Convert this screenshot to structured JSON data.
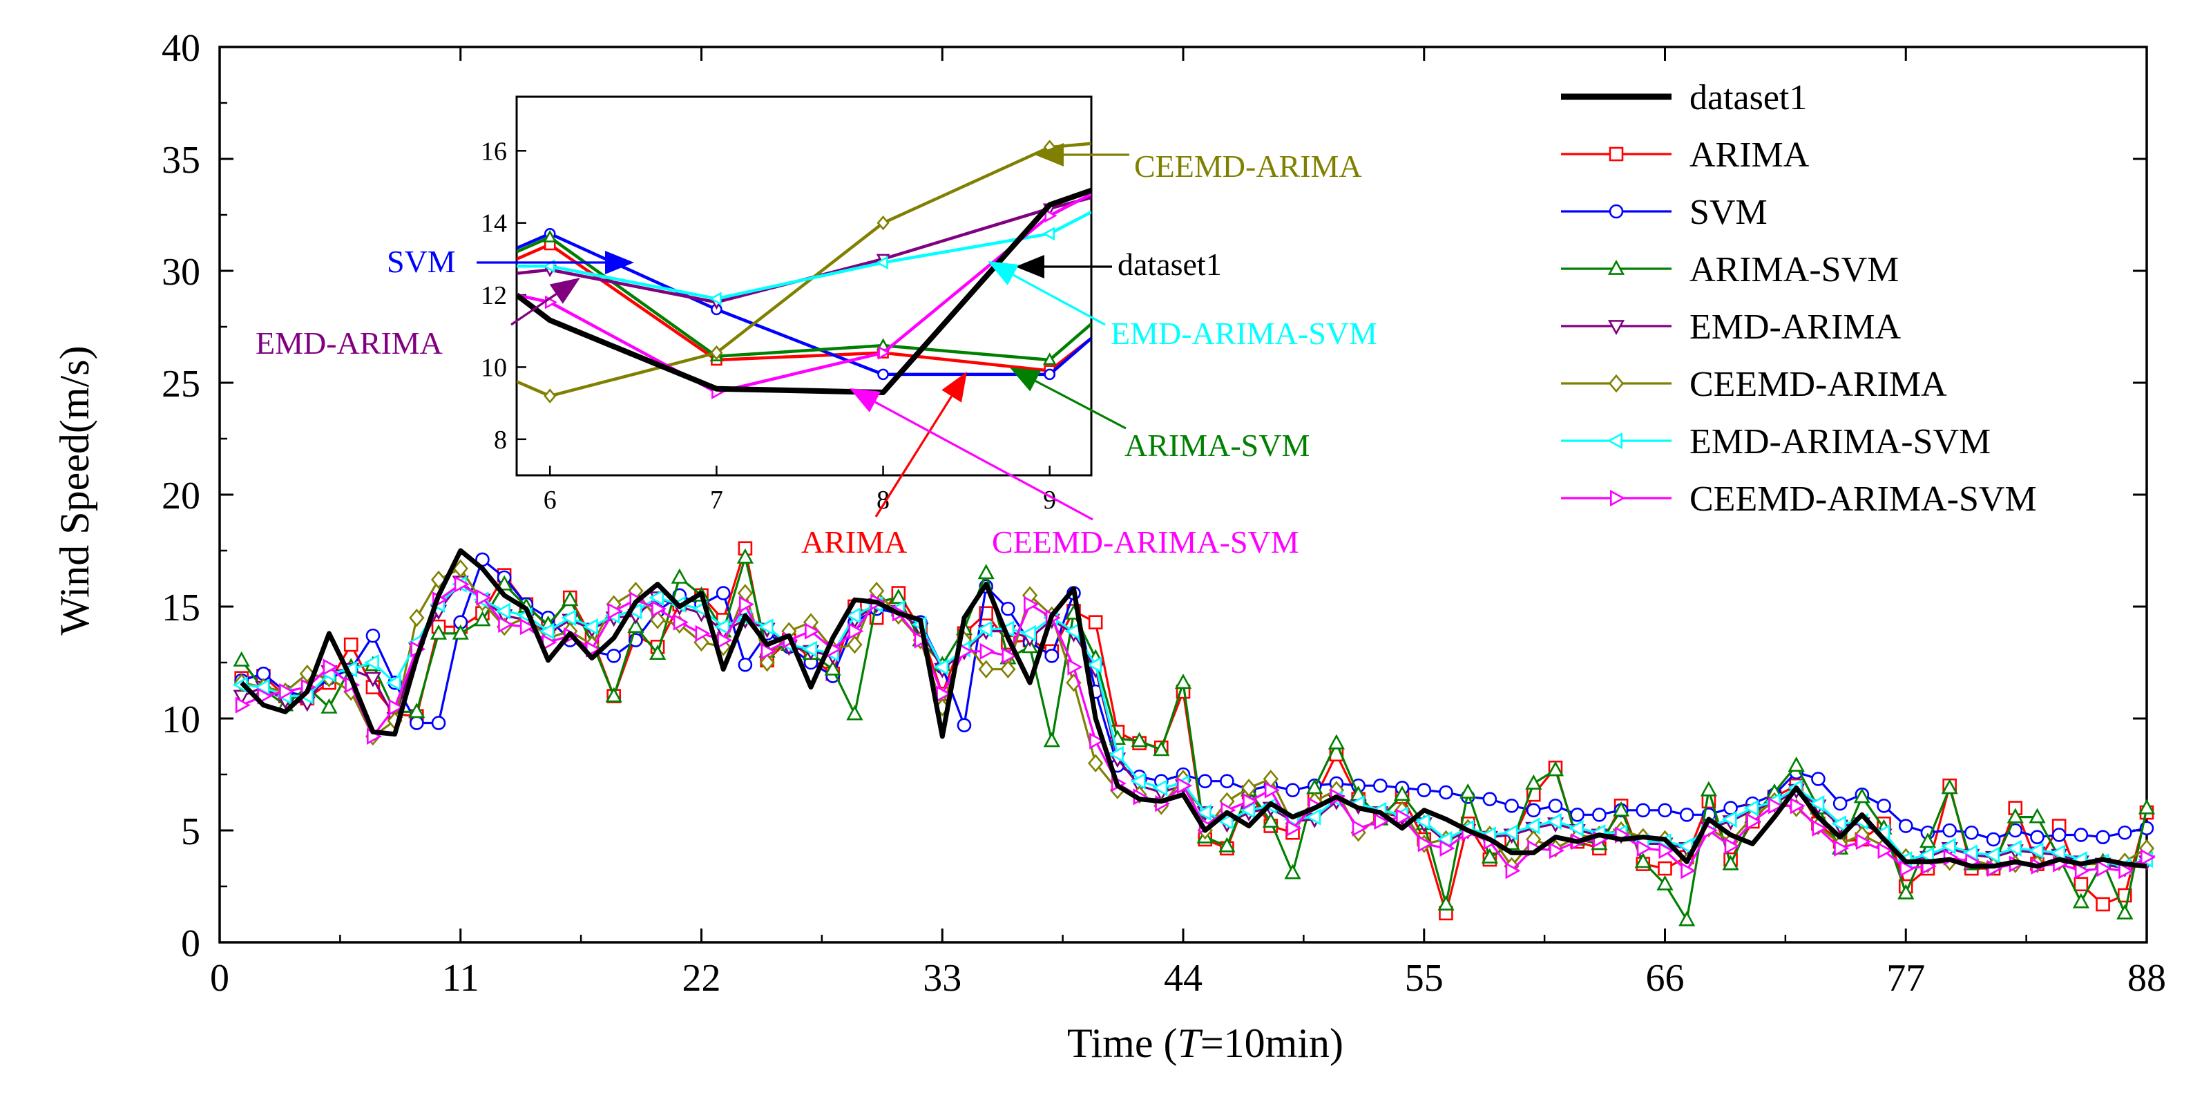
{
  "chart_data": [
    {
      "name": "main",
      "type": "line",
      "title": "",
      "xlabel": "Time (T=10min)",
      "xlabel_parts": [
        "Time (",
        "T",
        "=10min)"
      ],
      "ylabel": "Wind Speed(m/s)",
      "xlim": [
        0,
        88
      ],
      "ylim": [
        0,
        40
      ],
      "xticks": [
        0,
        11,
        22,
        33,
        44,
        55,
        66,
        77,
        88
      ],
      "yticks": [
        0,
        5,
        10,
        15,
        20,
        25,
        30,
        35,
        40
      ],
      "grid": false,
      "legend": "top-right",
      "x": [
        1,
        2,
        3,
        4,
        5,
        6,
        7,
        8,
        9,
        10,
        11,
        12,
        13,
        14,
        15,
        16,
        17,
        18,
        19,
        20,
        21,
        22,
        23,
        24,
        25,
        26,
        27,
        28,
        29,
        30,
        31,
        32,
        33,
        34,
        35,
        36,
        37,
        38,
        39,
        40,
        41,
        42,
        43,
        44,
        45,
        46,
        47,
        48,
        49,
        50,
        51,
        52,
        53,
        54,
        55,
        56,
        57,
        58,
        59,
        60,
        61,
        62,
        63,
        64,
        65,
        66,
        67,
        68,
        69,
        70,
        71,
        72,
        73,
        74,
        75,
        76,
        77,
        78,
        79,
        80,
        81,
        82,
        83,
        84,
        85,
        86,
        87,
        88
      ],
      "series": [
        {
          "name": "dataset1",
          "color": "#000000",
          "marker": "none",
          "values": [
            11.6,
            10.6,
            10.3,
            11.2,
            13.8,
            11.8,
            9.4,
            9.3,
            12.7,
            15.5,
            17.5,
            16.7,
            15.5,
            14.9,
            12.6,
            13.8,
            12.7,
            13.6,
            15.2,
            16.0,
            15.0,
            15.6,
            12.2,
            14.6,
            13.3,
            13.7,
            11.4,
            13.6,
            15.3,
            15.2,
            14.7,
            14.4,
            9.2,
            14.5,
            16.0,
            13.6,
            11.6,
            14.6,
            15.8,
            10.0,
            7.0,
            6.4,
            6.3,
            6.6,
            5.0,
            5.8,
            5.2,
            6.2,
            5.6,
            6.0,
            6.5,
            6.0,
            5.8,
            5.1,
            5.9,
            5.5,
            5.0,
            4.6,
            4.0,
            4.0,
            4.7,
            4.5,
            4.8,
            4.6,
            4.7,
            4.6,
            3.6,
            5.5,
            4.8,
            4.4,
            5.6,
            6.9,
            5.6,
            4.7,
            5.7,
            4.6,
            3.6,
            3.6,
            3.7,
            3.4,
            3.4,
            3.6,
            3.4,
            3.7,
            3.5,
            3.7,
            3.5,
            3.4
          ]
        },
        {
          "name": "ARIMA",
          "color": "#ff0000",
          "marker": "square",
          "values": [
            11.8,
            11.9,
            11.0,
            10.9,
            11.6,
            13.3,
            11.4,
            10.2,
            10.1,
            14.1,
            14.1,
            14.7,
            16.4,
            15.1,
            14.1,
            15.4,
            13.6,
            11.0,
            13.7,
            13.2,
            15.1,
            15.5,
            14.4,
            17.6,
            12.6,
            13.5,
            12.7,
            12.0,
            15.0,
            14.5,
            15.6,
            14.0,
            11.1,
            13.8,
            14.7,
            13.4,
            13.5,
            13.0,
            14.8,
            14.3,
            9.4,
            8.9,
            8.7,
            11.2,
            4.6,
            4.2,
            6.7,
            5.2,
            4.9,
            6.4,
            8.4,
            6.4,
            5.6,
            6.5,
            4.6,
            1.3,
            5.3,
            3.7,
            4.5,
            6.6,
            7.8,
            4.5,
            4.2,
            6.1,
            3.5,
            3.3,
            3.8,
            6.3,
            3.7,
            5.4,
            6.5,
            7.0,
            5.3,
            4.5,
            4.6,
            5.3,
            2.5,
            3.3,
            7.0,
            3.3,
            3.3,
            6.0,
            3.5,
            5.2,
            2.6,
            1.7,
            2.1,
            5.8
          ]
        },
        {
          "name": "SVM",
          "color": "#0000ff",
          "marker": "circle",
          "values": [
            11.7,
            12.0,
            11.2,
            11.0,
            11.8,
            12.2,
            13.7,
            11.6,
            9.8,
            9.8,
            14.3,
            17.1,
            16.3,
            15.1,
            14.5,
            13.5,
            13.0,
            12.8,
            13.5,
            14.8,
            15.5,
            15.1,
            15.6,
            12.4,
            13.8,
            13.2,
            12.5,
            11.9,
            14.3,
            14.9,
            14.7,
            14.3,
            12.3,
            9.7,
            15.9,
            14.9,
            13.4,
            12.8,
            15.6,
            11.2,
            7.9,
            7.4,
            7.2,
            7.5,
            7.2,
            7.2,
            6.8,
            7.0,
            6.8,
            7.0,
            7.1,
            7.0,
            7.0,
            6.9,
            6.8,
            6.7,
            6.5,
            6.4,
            6.1,
            5.9,
            6.1,
            5.7,
            5.7,
            5.9,
            5.9,
            5.9,
            5.7,
            5.7,
            6.0,
            6.2,
            6.6,
            7.6,
            7.3,
            6.2,
            6.6,
            6.1,
            5.2,
            4.9,
            5.0,
            4.9,
            4.6,
            5.0,
            4.7,
            4.8,
            4.8,
            4.7,
            4.9,
            5.1
          ]
        },
        {
          "name": "ARIMA-SVM",
          "color": "#008000",
          "marker": "triangle-up",
          "values": [
            12.6,
            11.3,
            10.6,
            11.4,
            10.5,
            12.3,
            12.4,
            10.3,
            10.3,
            13.8,
            13.8,
            14.4,
            16.0,
            15.0,
            14.2,
            15.3,
            13.4,
            11.0,
            14.1,
            12.9,
            16.3,
            15.5,
            13.9,
            17.2,
            13.0,
            13.3,
            12.9,
            12.2,
            10.2,
            15.2,
            15.4,
            13.5,
            12.4,
            14.0,
            16.5,
            12.7,
            13.2,
            9.0,
            14.7,
            12.7,
            9.1,
            9.0,
            8.6,
            11.6,
            4.7,
            4.3,
            6.8,
            5.4,
            3.1,
            6.9,
            8.9,
            6.6,
            5.5,
            6.6,
            5.3,
            1.7,
            6.7,
            3.8,
            4.4,
            7.1,
            7.7,
            4.6,
            4.4,
            5.9,
            3.6,
            2.6,
            1.0,
            6.8,
            3.5,
            5.6,
            6.7,
            7.9,
            6.0,
            4.2,
            6.5,
            5.1,
            2.2,
            4.5,
            6.9,
            3.5,
            3.5,
            5.6,
            5.6,
            3.8,
            1.8,
            3.6,
            1.3,
            6.0
          ]
        },
        {
          "name": "EMD-ARIMA",
          "color": "#800080",
          "marker": "triangle-down",
          "values": [
            11.0,
            11.4,
            10.8,
            10.7,
            12.1,
            12.2,
            11.8,
            10.0,
            13.1,
            14.8,
            16.1,
            15.3,
            14.6,
            14.4,
            13.8,
            14.4,
            14.0,
            14.5,
            14.6,
            15.4,
            15.0,
            14.7,
            13.9,
            14.4,
            14.0,
            13.2,
            13.0,
            12.8,
            14.4,
            15.1,
            14.8,
            14.0,
            12.2,
            13.0,
            13.9,
            13.9,
            13.6,
            14.4,
            13.8,
            12.2,
            8.2,
            7.0,
            6.7,
            7.0,
            5.8,
            5.3,
            5.8,
            6.0,
            5.4,
            5.5,
            6.3,
            6.1,
            5.8,
            5.6,
            5.3,
            4.5,
            5.0,
            4.7,
            4.8,
            5.1,
            5.3,
            5.0,
            4.8,
            4.8,
            4.4,
            4.4,
            4.2,
            5.1,
            5.4,
            5.9,
            6.2,
            6.8,
            6.1,
            5.2,
            5.3,
            4.8,
            3.6,
            3.8,
            4.2,
            3.9,
            3.8,
            4.1,
            4.0,
            3.9,
            3.6,
            3.5,
            3.3,
            3.6
          ]
        },
        {
          "name": "CEEMD-ARIMA",
          "color": "#808000",
          "marker": "diamond",
          "values": [
            11.6,
            11.4,
            11.2,
            12.0,
            11.8,
            11.2,
            9.2,
            9.9,
            14.5,
            16.2,
            16.7,
            15.2,
            14.1,
            14.5,
            13.6,
            13.9,
            13.3,
            15.1,
            15.7,
            14.4,
            14.2,
            13.4,
            13.2,
            15.6,
            12.5,
            13.9,
            14.3,
            13.1,
            13.3,
            15.7,
            14.6,
            13.5,
            10.5,
            13.5,
            12.2,
            12.2,
            15.5,
            14.6,
            11.6,
            8.0,
            6.8,
            6.6,
            6.1,
            7.3,
            5.0,
            6.3,
            6.9,
            7.3,
            5.3,
            6.3,
            6.8,
            4.9,
            5.6,
            5.9,
            4.4,
            4.6,
            5.1,
            4.8,
            3.4,
            4.6,
            4.2,
            4.7,
            4.8,
            5.0,
            4.7,
            4.6,
            3.6,
            5.1,
            4.5,
            5.6,
            6.3,
            6.0,
            5.2,
            4.4,
            4.8,
            4.3,
            3.8,
            3.5,
            3.6,
            3.7,
            3.4,
            3.5,
            3.5,
            3.6,
            3.5,
            3.5,
            3.6,
            4.2
          ]
        },
        {
          "name": "EMD-ARIMA-SVM",
          "color": "#00ffff",
          "marker": "triangle-left",
          "values": [
            11.5,
            11.4,
            11.0,
            11.0,
            12.0,
            12.2,
            12.5,
            11.6,
            13.4,
            15.1,
            16.0,
            15.3,
            14.8,
            14.6,
            13.9,
            14.5,
            14.1,
            14.6,
            14.8,
            15.4,
            15.1,
            14.9,
            14.1,
            14.5,
            14.1,
            13.3,
            13.1,
            12.9,
            14.6,
            15.1,
            14.9,
            14.2,
            12.3,
            13.1,
            14.0,
            14.0,
            13.8,
            14.5,
            13.9,
            12.4,
            8.4,
            7.2,
            6.9,
            7.1,
            5.8,
            5.4,
            5.9,
            6.1,
            5.5,
            5.6,
            6.4,
            6.2,
            5.9,
            5.7,
            5.4,
            4.6,
            5.1,
            4.8,
            4.9,
            5.2,
            5.4,
            5.1,
            4.9,
            4.9,
            4.5,
            4.5,
            4.3,
            5.2,
            5.5,
            6.0,
            6.3,
            6.9,
            6.2,
            5.3,
            5.4,
            4.9,
            3.7,
            3.9,
            4.3,
            4.0,
            3.9,
            4.2,
            4.1,
            4.0,
            3.7,
            3.6,
            3.4,
            3.7
          ]
        },
        {
          "name": "CEEMD-ARIMA-SVM",
          "color": "#ff00ff",
          "marker": "triangle-right",
          "values": [
            10.6,
            11.0,
            11.2,
            11.4,
            12.3,
            11.5,
            9.2,
            10.5,
            13.1,
            15.3,
            16.0,
            15.4,
            14.2,
            14.1,
            13.4,
            13.7,
            13.1,
            14.8,
            15.3,
            14.9,
            14.3,
            13.8,
            13.5,
            15.1,
            13.0,
            13.5,
            13.9,
            13.1,
            13.9,
            15.2,
            14.7,
            13.5,
            11.1,
            13.0,
            13.0,
            12.8,
            15.1,
            14.5,
            12.3,
            9.0,
            7.1,
            6.5,
            6.2,
            7.0,
            5.2,
            5.9,
            6.3,
            6.8,
            5.1,
            6.1,
            6.5,
            5.1,
            5.4,
            5.6,
            4.4,
            4.2,
            4.9,
            4.5,
            3.2,
            4.2,
            4.1,
            4.5,
            4.6,
            4.8,
            4.2,
            4.1,
            3.2,
            5.0,
            4.3,
            5.4,
            6.1,
            6.1,
            5.1,
            4.2,
            4.5,
            4.1,
            3.3,
            3.4,
            3.8,
            3.6,
            3.3,
            3.5,
            3.4,
            3.5,
            3.2,
            3.3,
            3.2,
            3.8
          ]
        }
      ]
    },
    {
      "name": "inset",
      "type": "line",
      "xlim": [
        5.8,
        9.25
      ],
      "ylim": [
        7.0,
        17.5
      ],
      "xticks": [
        6,
        7,
        8,
        9
      ],
      "yticks": [
        8,
        10,
        12,
        14,
        16
      ],
      "x": [
        5.8,
        6,
        7,
        8,
        9,
        9.25
      ],
      "series": [
        {
          "name": "dataset1",
          "color": "#000000",
          "values": [
            12.0,
            11.3,
            9.4,
            9.3,
            14.5,
            14.9
          ]
        },
        {
          "name": "ARIMA",
          "color": "#ff0000",
          "values": [
            13.0,
            13.4,
            10.2,
            10.4,
            9.9,
            10.8
          ]
        },
        {
          "name": "SVM",
          "color": "#0000ff",
          "values": [
            13.3,
            13.7,
            11.6,
            9.8,
            9.8,
            10.8
          ]
        },
        {
          "name": "ARIMA-SVM",
          "color": "#008000",
          "values": [
            13.2,
            13.6,
            10.3,
            10.6,
            10.2,
            11.2
          ]
        },
        {
          "name": "EMD-ARIMA",
          "color": "#800080",
          "values": [
            12.6,
            12.7,
            11.8,
            13.0,
            14.4,
            14.7
          ]
        },
        {
          "name": "CEEMD-ARIMA",
          "color": "#808000",
          "values": [
            9.6,
            9.2,
            10.4,
            14.0,
            16.1,
            16.2
          ]
        },
        {
          "name": "EMD-ARIMA-SVM",
          "color": "#00ffff",
          "values": [
            12.8,
            12.8,
            11.9,
            12.9,
            13.7,
            14.3
          ]
        },
        {
          "name": "CEEMD-ARIMA-SVM",
          "color": "#ff00ff",
          "values": [
            12.0,
            11.8,
            9.3,
            10.4,
            14.2,
            14.8
          ]
        }
      ]
    }
  ],
  "annotations": [
    {
      "text": "CEEMD-ARIMA",
      "color": "#808000"
    },
    {
      "text": "dataset1",
      "color": "#000000"
    },
    {
      "text": "SVM",
      "color": "#0000ff"
    },
    {
      "text": "EMD-ARIMA",
      "color": "#800080"
    },
    {
      "text": "EMD-ARIMA-SVM",
      "color": "#00ffff"
    },
    {
      "text": "ARIMA-SVM",
      "color": "#008000"
    },
    {
      "text": "ARIMA",
      "color": "#ff0000"
    },
    {
      "text": "CEEMD-ARIMA-SVM",
      "color": "#ff00ff"
    }
  ]
}
